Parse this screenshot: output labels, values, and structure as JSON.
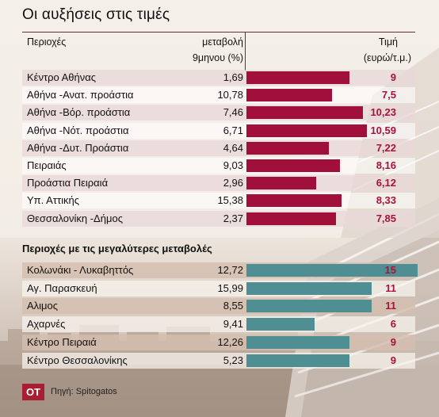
{
  "title": "Οι αυξήσεις στις τιμές",
  "headers": {
    "region": "Περιοχές",
    "change_line1": "μεταβολή",
    "change_line2": "9μηνου (%)",
    "price_line1": "Τιμή",
    "price_line2": "(ευρώ/τ.μ.)"
  },
  "section2_title": "Περιοχές με τις μεγαλύτερες μεταβολές",
  "colors": {
    "bar_top": "#a0103a",
    "bar_bottom": "#4f8f93",
    "price_text": "#a4143c",
    "logo_bg": "#a81e33"
  },
  "chart_data": [
    {
      "type": "bar",
      "orientation": "horizontal",
      "bars_encode": "price",
      "title": "Οι αυξήσεις στις τιμές",
      "categories": [
        "Κέντρο Αθήνας",
        "Αθήνα -Ανατ. προάστια",
        "Αθήνα -Βόρ. προάστια",
        "Αθήνα -Νότ. προάστια",
        "Αθήνα -Δυτ. Προάστια",
        "Πειραιάς",
        "Προάστια Πειραιά",
        "Υπ. Αττικής",
        "Θεσσαλονίκη -Δήμος"
      ],
      "change_pct_labels": [
        "1,69",
        "10,78",
        "7,46",
        "6,71",
        "4,64",
        "9,03",
        "2,96",
        "15,38",
        "2,37"
      ],
      "change_pct": [
        1.69,
        10.78,
        7.46,
        6.71,
        4.64,
        9.03,
        2.96,
        15.38,
        2.37
      ],
      "price_labels": [
        "9",
        "7,5",
        "10,23",
        "10,59",
        "7,22",
        "8,16",
        "6,12",
        "8,33",
        "7,85"
      ],
      "price": [
        9,
        7.5,
        10.23,
        10.59,
        7.22,
        8.16,
        6.12,
        8.33,
        7.85
      ]
    },
    {
      "type": "bar",
      "orientation": "horizontal",
      "bars_encode": "price",
      "title": "Περιοχές με τις μεγαλύτερες μεταβολές",
      "categories": [
        "Κολωνάκι - Λυκαβηττός",
        "Αγ. Παρασκευή",
        "Αλιμος",
        "Αχαρνές",
        "Κέντρο Πειραιά",
        "Κέντρο Θεσσαλονίκης"
      ],
      "change_pct_labels": [
        "12,72",
        "15,99",
        "8,55",
        "9,41",
        "12,26",
        "5,23"
      ],
      "change_pct": [
        12.72,
        15.99,
        8.55,
        9.41,
        12.26,
        5.23
      ],
      "price_labels": [
        "15",
        "11",
        "11",
        "6",
        "9",
        "9"
      ],
      "price": [
        15,
        11,
        11,
        6,
        9,
        9
      ]
    }
  ],
  "logo": "ΟΤ",
  "source": "Πηγή: Spitogatos"
}
